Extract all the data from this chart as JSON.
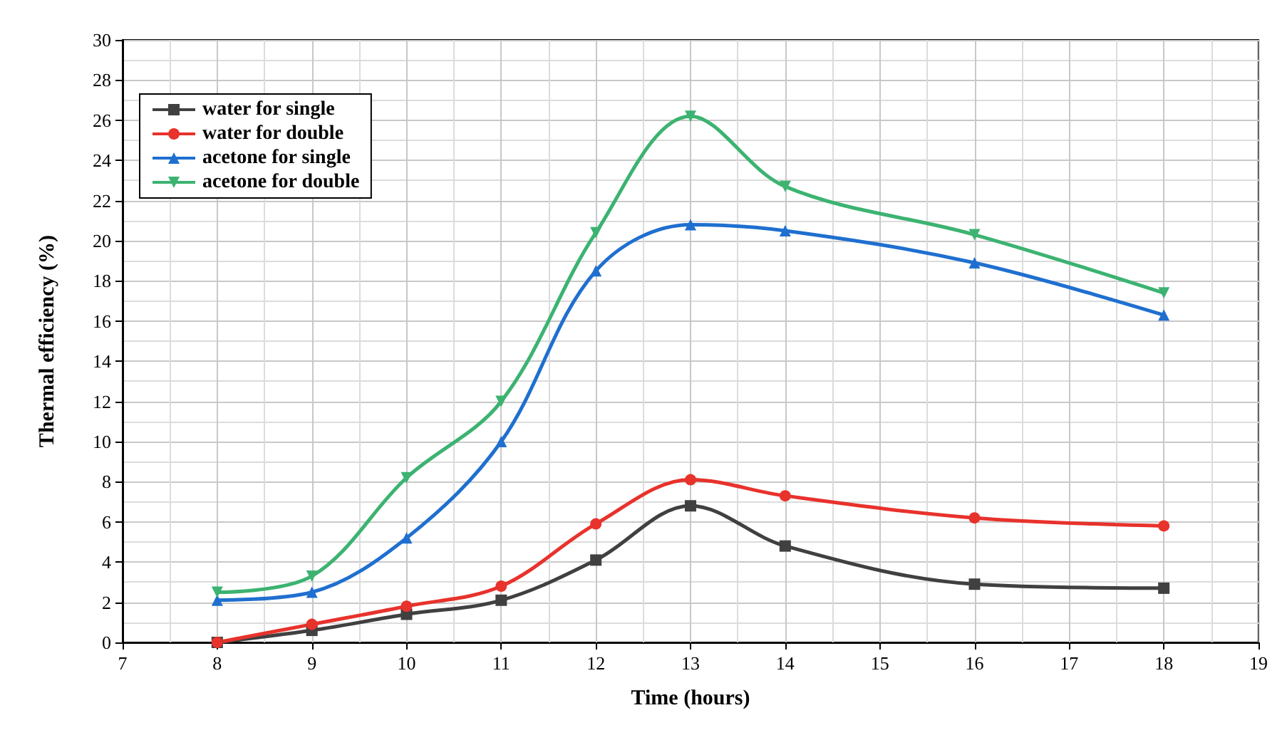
{
  "chart_data": {
    "type": "line",
    "xlabel": "Time (hours)",
    "ylabel": "Thermal efficiency (%)",
    "x": [
      8,
      9,
      10,
      11,
      12,
      13,
      14,
      16,
      18
    ],
    "xlim": [
      7,
      19
    ],
    "xticks": [
      7,
      8,
      9,
      10,
      11,
      12,
      13,
      14,
      15,
      16,
      17,
      18,
      19
    ],
    "ylim": [
      0,
      30
    ],
    "yticks": [
      0,
      2,
      4,
      6,
      8,
      10,
      12,
      14,
      16,
      18,
      20,
      22,
      24,
      26,
      28,
      30
    ],
    "grid": true,
    "legend": "top left",
    "line_style": "solid",
    "series": [
      {
        "name": "water for single",
        "color": "#404040",
        "marker": "square",
        "values": [
          0,
          0.6,
          1.4,
          2.1,
          4.1,
          6.8,
          4.8,
          2.9,
          2.7
        ]
      },
      {
        "name": "water for double",
        "color": "#e8322c",
        "marker": "circle",
        "values": [
          0,
          0.9,
          1.8,
          2.8,
          5.9,
          8.1,
          7.3,
          6.2,
          5.8
        ]
      },
      {
        "name": "acetone for single",
        "color": "#1f6fd0",
        "marker": "triangle",
        "values": [
          2.1,
          2.5,
          5.2,
          10.0,
          18.5,
          20.8,
          20.5,
          18.9,
          16.3
        ]
      },
      {
        "name": "acetone for double",
        "color": "#3cb371",
        "marker": "triangle-down",
        "values": [
          2.5,
          3.3,
          8.2,
          12.0,
          20.4,
          26.2,
          22.7,
          20.3,
          17.4
        ]
      }
    ]
  }
}
